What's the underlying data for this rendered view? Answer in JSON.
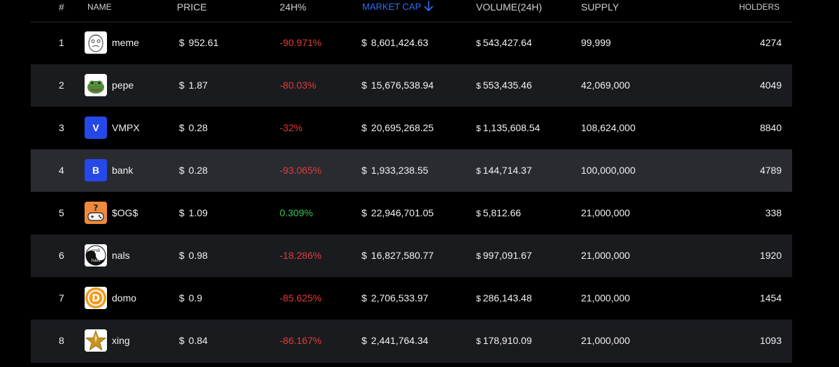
{
  "header": {
    "num": "#",
    "name": "NAME",
    "price": "PRICE",
    "change": "24H%",
    "market_cap": "MARKET CAP",
    "volume": "VOLUME(24H)",
    "supply": "SUPPLY",
    "holders": "HOLDERS"
  },
  "sort": {
    "column": "market_cap",
    "direction": "down",
    "icon": "arrow-down-icon",
    "accent": "#2f6df5"
  },
  "colors": {
    "negative": "#e23b3b",
    "positive": "#34c759"
  },
  "currency_symbol": "$",
  "rows": [
    {
      "rank": "1",
      "name": "meme",
      "logo_icon": "meme-face-icon",
      "price": "952.61",
      "change": "-90.971%",
      "market_cap": "8,601,424.63",
      "volume": "543,427.64",
      "supply": "99,999",
      "holders": "4274"
    },
    {
      "rank": "2",
      "name": "pepe",
      "logo_icon": "pepe-frog-icon",
      "price": "1.87",
      "change": "-80.03%",
      "market_cap": "15,676,538.94",
      "volume": "553,435.46",
      "supply": "42,069,000",
      "holders": "4049"
    },
    {
      "rank": "3",
      "name": "VMPX",
      "logo_icon": "letter-v-icon",
      "logo_letter": "V",
      "price": "0.28",
      "change": "-32%",
      "market_cap": "20,695,268.25",
      "volume": "1,135,608.54",
      "supply": "108,624,000",
      "holders": "8840"
    },
    {
      "rank": "4",
      "name": "bank",
      "logo_icon": "letter-b-icon",
      "logo_letter": "B",
      "price": "0.28",
      "change": "-93.065%",
      "market_cap": "1,933,238.55",
      "volume": "144,714.37",
      "supply": "100,000,000",
      "holders": "4789"
    },
    {
      "rank": "5",
      "name": "$OG$",
      "logo_icon": "game-controller-question-icon",
      "price": "1.09",
      "change": "0.309%",
      "market_cap": "22,946,701.05",
      "volume": "5,812.66",
      "supply": "21,000,000",
      "holders": "338"
    },
    {
      "rank": "6",
      "name": "nals",
      "logo_icon": "ordi-nals-yin-yang-icon",
      "logo_text_top": "ordi",
      "logo_text_bottom": "nals",
      "price": "0.98",
      "change": "-18.286%",
      "market_cap": "16,827,580.77",
      "volume": "997,091.67",
      "supply": "21,000,000",
      "holders": "1920"
    },
    {
      "rank": "7",
      "name": "domo",
      "logo_icon": "domo-coin-icon",
      "logo_letter": "D",
      "price": "0.9",
      "change": "-85.625%",
      "market_cap": "2,706,533.97",
      "volume": "286,143.48",
      "supply": "21,000,000",
      "holders": "1454"
    },
    {
      "rank": "8",
      "name": "xing",
      "logo_icon": "gold-star-icon",
      "price": "0.84",
      "change": "-86.167%",
      "market_cap": "2,441,764.34",
      "volume": "178,910.09",
      "supply": "21,000,000",
      "holders": "1093"
    }
  ]
}
